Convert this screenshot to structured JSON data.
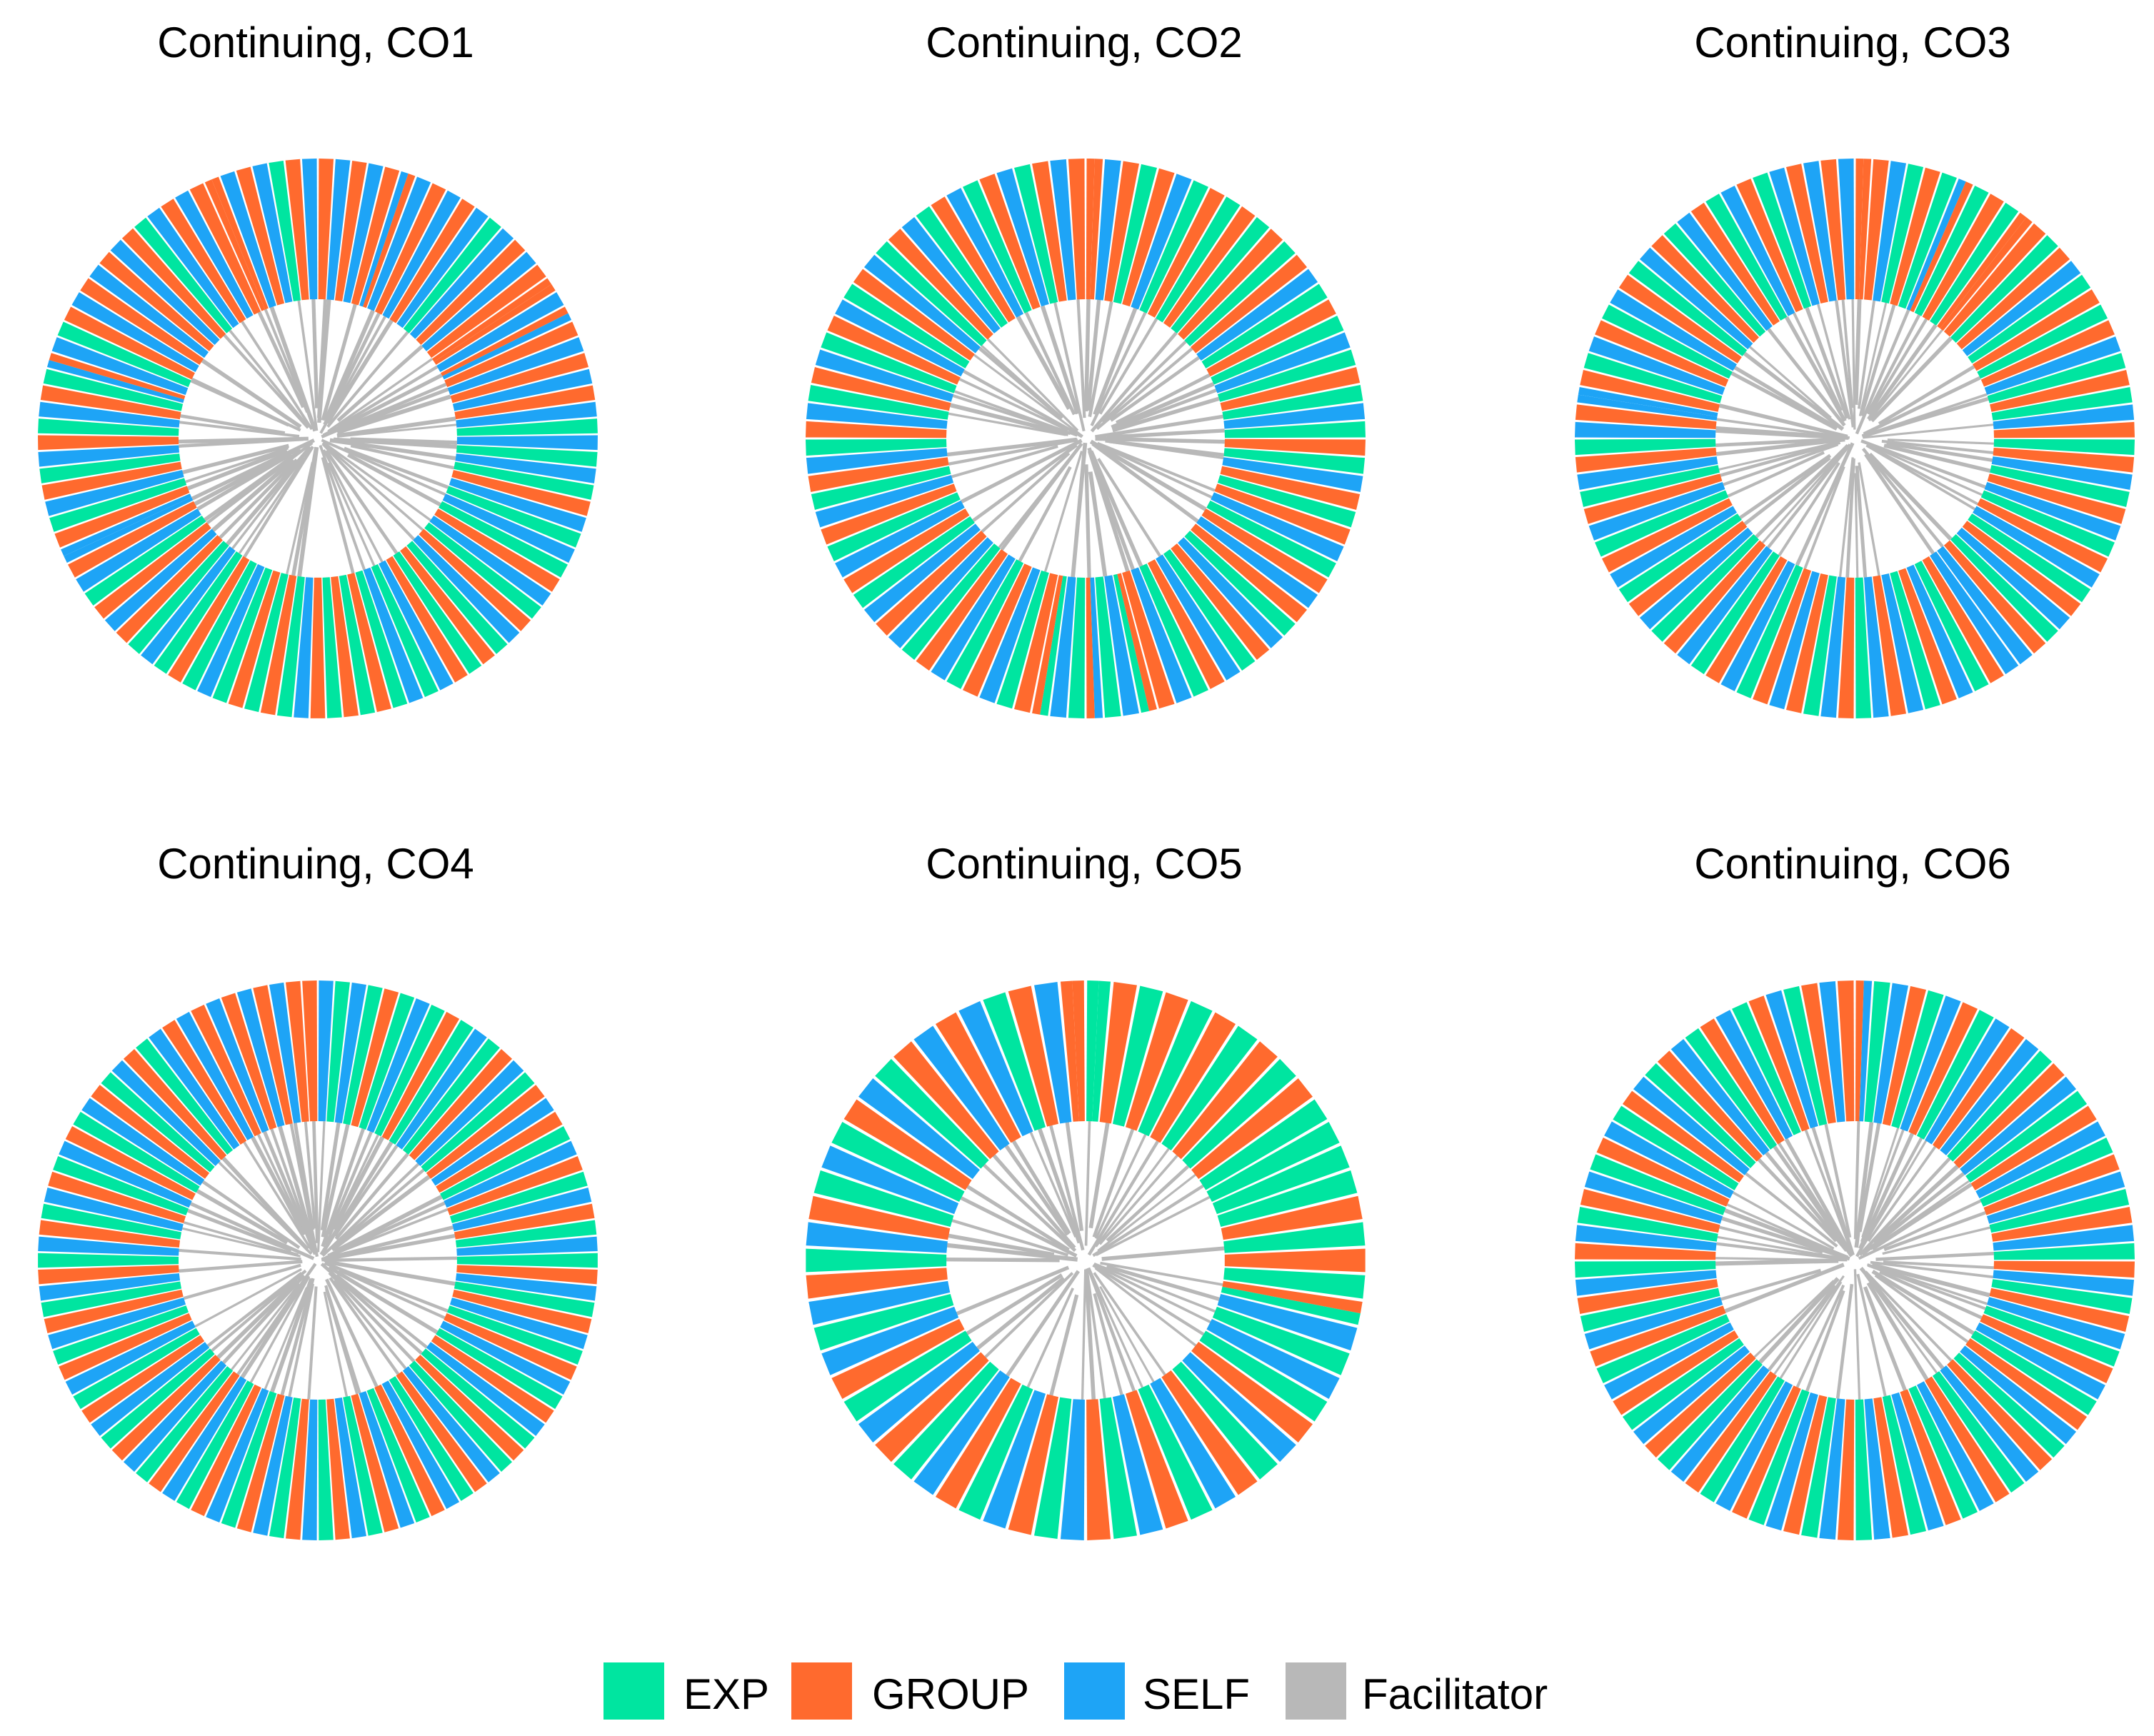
{
  "figure_title": "",
  "colors": {
    "EXP": "#00e5a0",
    "GROUP": "#ff6a2e",
    "SELF": "#1ea4f6",
    "Facilitator": "#b8b8b8"
  },
  "legend": [
    {
      "key": "EXP",
      "label": "EXP"
    },
    {
      "key": "GROUP",
      "label": "GROUP"
    },
    {
      "key": "SELF",
      "label": "SELF"
    },
    {
      "key": "Facilitator",
      "label": "Facilitator"
    }
  ],
  "chart_data": [
    {
      "type": "radial-stacked-bar",
      "title": "Continuing, CO1",
      "categories": [
        "EXP",
        "GROUP",
        "SELF",
        "Facilitator"
      ],
      "segments": [
        "G",
        "S",
        "G",
        "S",
        "G",
        "SG",
        "S",
        "G",
        "S",
        "G",
        "S",
        "E",
        "S",
        "G",
        "S",
        "G",
        "GG",
        "S",
        "GS",
        "G",
        "S",
        "G",
        "S",
        "G",
        "S",
        "E",
        "S",
        "E",
        "S",
        "E",
        "G",
        "S",
        "E",
        "S",
        "E",
        "G",
        "S",
        "E",
        "G",
        "S",
        "E",
        "G",
        "E",
        "G",
        "S",
        "E",
        "S",
        "E",
        "G",
        "E",
        "G",
        "E",
        "G",
        "S",
        "E",
        "G",
        "E",
        "G",
        "E",
        "S",
        "E",
        "G",
        "E",
        "S",
        "E",
        "G",
        "S",
        "G",
        "E",
        "S",
        "G",
        "SS",
        "G",
        "E",
        "S",
        "G",
        "E",
        "S",
        "G",
        "E",
        "S",
        "G",
        "E",
        "SG",
        "S",
        "E",
        "G",
        "S",
        "G",
        "S",
        "G",
        "S",
        "G",
        "E",
        "S",
        "G",
        "S",
        "G",
        "GG",
        "S",
        "G",
        "S",
        "E",
        "G",
        "S"
      ]
    },
    {
      "type": "radial-stacked-bar",
      "title": "Continuing, CO2",
      "categories": [
        "EXP",
        "GROUP",
        "SELF",
        "Facilitator"
      ],
      "segments": [
        "GG",
        "S",
        "G",
        "E",
        "G",
        "S",
        "E",
        "G",
        "E",
        "G",
        "E",
        "G",
        "E",
        "G",
        "S",
        "E",
        "G",
        "E",
        "S",
        "E",
        "G",
        "E",
        "S",
        "E",
        "G",
        "E",
        "S",
        "G",
        "E",
        "G",
        "S",
        "E",
        "G",
        "S",
        "G",
        "E",
        "S",
        "G",
        "E",
        "S",
        "G",
        "E",
        "S",
        "G",
        "GE",
        "S",
        "E",
        "SG",
        "E",
        "S",
        "EG",
        "G",
        "E",
        "S",
        "G",
        "E",
        "S",
        "G",
        "E",
        "S",
        "G",
        "S",
        "E",
        "G",
        "S",
        "E",
        "G",
        "S",
        "E",
        "G",
        "S",
        "E",
        "G",
        "S",
        "E",
        "G",
        "S",
        "E",
        "G",
        "S",
        "E",
        "G",
        "S",
        "E",
        "G",
        "S",
        "E",
        "G",
        "S",
        "E",
        "G",
        "S",
        "E",
        "G",
        "S",
        "G"
      ]
    },
    {
      "type": "radial-stacked-bar",
      "title": "Continuing, CO3",
      "categories": [
        "EXP",
        "GROUP",
        "SELF",
        "Facilitator"
      ],
      "segments": [
        "GG",
        "G",
        "S",
        "E",
        "G",
        "E",
        "SG",
        "E",
        "G",
        "E",
        "GG",
        "G",
        "E",
        "G",
        "S",
        "E",
        "G",
        "E",
        "G",
        "S",
        "E",
        "G",
        "E",
        "S",
        "G",
        "E",
        "G",
        "S",
        "E",
        "G",
        "S",
        "E",
        "G",
        "S",
        "E",
        "G",
        "S",
        "E",
        "G",
        "S",
        "S",
        "G",
        "E",
        "S",
        "G",
        "E",
        "S",
        "G",
        "S",
        "E",
        "G",
        "S",
        "E",
        "G",
        "S",
        "G",
        "E",
        "S",
        "G",
        "E",
        "S",
        "G",
        "E",
        "S",
        "G",
        "E",
        "S",
        "G",
        "E",
        "S",
        "G",
        "E",
        "S",
        "G",
        "E",
        "S",
        "G",
        "SS",
        "G",
        "E",
        "S",
        "G",
        "E",
        "S",
        "G",
        "E",
        "S",
        "G",
        "E",
        "S",
        "G",
        "E",
        "S",
        "G",
        "E",
        "S",
        "G",
        "S",
        "G",
        "S"
      ]
    },
    {
      "type": "radial-stacked-bar",
      "title": "Continuing, CO4",
      "categories": [
        "EXP",
        "GROUP",
        "SELF",
        "Facilitator"
      ],
      "segments": [
        "S",
        "E",
        "S",
        "E",
        "G",
        "E",
        "S",
        "E",
        "G",
        "E",
        "S",
        "E",
        "G",
        "S",
        "E",
        "G",
        "S",
        "G",
        "E",
        "S",
        "G",
        "E",
        "S",
        "G",
        "E",
        "S",
        "E",
        "G",
        "S",
        "E",
        "G",
        "S",
        "E",
        "G",
        "S",
        "E",
        "G",
        "S",
        "E",
        "G",
        "E",
        "S",
        "G",
        "E",
        "S",
        "G",
        "E",
        "S",
        "G",
        "E",
        "S",
        "G",
        "E",
        "S",
        "G",
        "E",
        "S",
        "G",
        "E",
        "S",
        "G",
        "E",
        "S",
        "G",
        "E",
        "S",
        "G",
        "E",
        "S",
        "G",
        "E",
        "S",
        "G",
        "E",
        "S",
        "G",
        "E",
        "S",
        "G",
        "E",
        "S",
        "G",
        "E",
        "S",
        "G",
        "E",
        "S",
        "G",
        "E",
        "S",
        "G",
        "E",
        "S",
        "G",
        "E",
        "S",
        "G",
        "S",
        "G",
        "S",
        "G",
        "S",
        "G",
        "S",
        "G",
        "G"
      ]
    },
    {
      "type": "radial-stacked-bar",
      "title": "Continuing, CO5",
      "categories": [
        "EXP",
        "GROUP",
        "SELF",
        "Facilitator"
      ],
      "segments": [
        "EE",
        "G",
        "E",
        "G",
        "E",
        "G",
        "E",
        "G",
        "E",
        "G",
        "E",
        "E",
        "E",
        "E",
        "G",
        "E",
        "G",
        "E",
        "GE",
        "S",
        "E",
        "S",
        "E",
        "G",
        "S",
        "E",
        "G",
        "S",
        "E",
        "G",
        "S",
        "E",
        "G",
        "S",
        "E",
        "G",
        "S",
        "E",
        "G",
        "S",
        "E",
        "G",
        "S",
        "E",
        "G",
        "S",
        "E",
        "S",
        "G",
        "E",
        "S",
        "G",
        "E",
        "S",
        "E",
        "G",
        "S",
        "E",
        "G",
        "S",
        "G",
        "S",
        "E",
        "G",
        "S",
        "GG"
      ]
    },
    {
      "type": "radial-stacked-bar",
      "title": "Continuing, CO6",
      "categories": [
        "EXP",
        "GROUP",
        "SELF",
        "Facilitator"
      ],
      "segments": [
        "GS",
        "E",
        "S",
        "G",
        "E",
        "S",
        "G",
        "E",
        "S",
        "G",
        "S",
        "E",
        "G",
        "S",
        "E",
        "G",
        "S",
        "E",
        "G",
        "S",
        "E",
        "G",
        "S",
        "E",
        "G",
        "S",
        "E",
        "G",
        "S",
        "E",
        "G",
        "S",
        "E",
        "G",
        "S",
        "E",
        "G",
        "S",
        "E",
        "G",
        "S",
        "E",
        "G",
        "S",
        "E",
        "G",
        "S",
        "E",
        "G",
        "S",
        "E",
        "G",
        "S",
        "E",
        "G",
        "S",
        "E",
        "G",
        "S",
        "E",
        "G",
        "S",
        "E",
        "G",
        "S",
        "E",
        "G",
        "S",
        "E",
        "G",
        "S",
        "E",
        "G",
        "S",
        "E",
        "G",
        "S",
        "E",
        "G",
        "S",
        "E",
        "G",
        "S",
        "E",
        "G",
        "S",
        "E",
        "G",
        "S",
        "E",
        "G",
        "S",
        "E",
        "G",
        "S",
        "G"
      ]
    }
  ]
}
